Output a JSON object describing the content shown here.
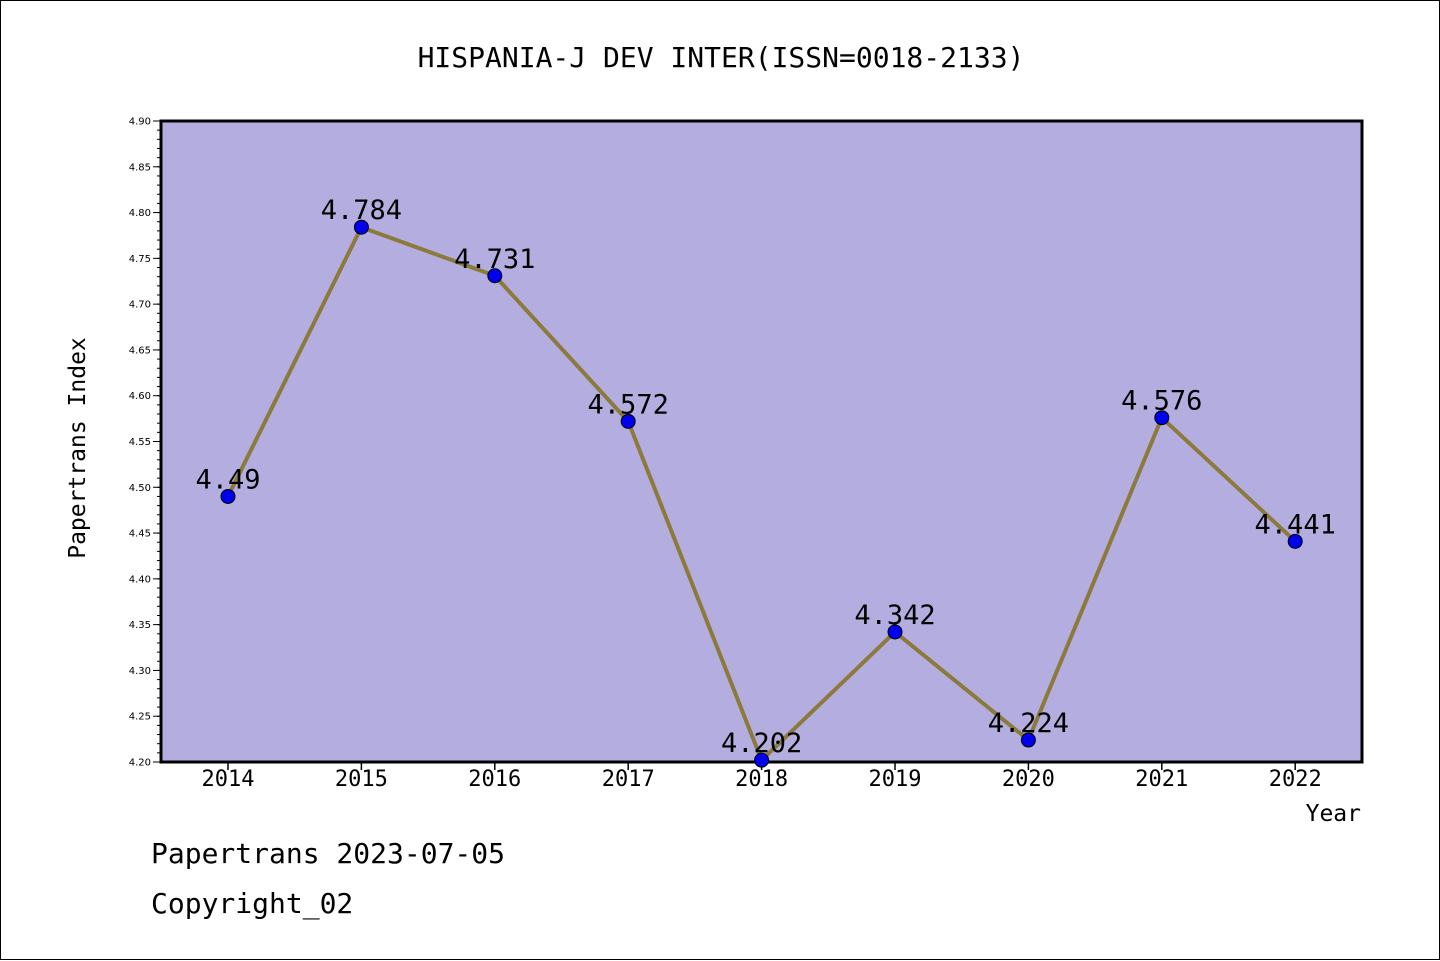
{
  "chart_data": {
    "type": "line",
    "title": "HISPANIA-J DEV INTER(ISSN=0018-2133)",
    "xlabel": "Year",
    "ylabel": "Papertrans Index",
    "categories": [
      "2014",
      "2015",
      "2016",
      "2017",
      "2018",
      "2019",
      "2020",
      "2021",
      "2022"
    ],
    "series": [
      {
        "values": [
          4.49,
          4.784,
          4.731,
          4.572,
          4.202,
          4.342,
          4.224,
          4.576,
          4.441
        ],
        "labels": [
          "4.49",
          "4.784",
          "4.731",
          "4.572",
          "4.202",
          "4.342",
          "4.224",
          "4.576",
          "4.441"
        ]
      }
    ],
    "ylim": [
      4.2,
      4.9
    ],
    "yticks": [
      "4.20",
      "4.25",
      "4.30",
      "4.35",
      "4.40",
      "4.45",
      "4.50",
      "4.55",
      "4.60",
      "4.65",
      "4.70",
      "4.75",
      "4.80",
      "4.85",
      "4.90"
    ],
    "grid": false,
    "colors": {
      "plot_background": "#b4aee0",
      "line": "#8b7a3c",
      "marker": "#0000ee"
    }
  },
  "footer": {
    "line1": "Papertrans 2023-07-05",
    "line2": "Copyright_02"
  }
}
